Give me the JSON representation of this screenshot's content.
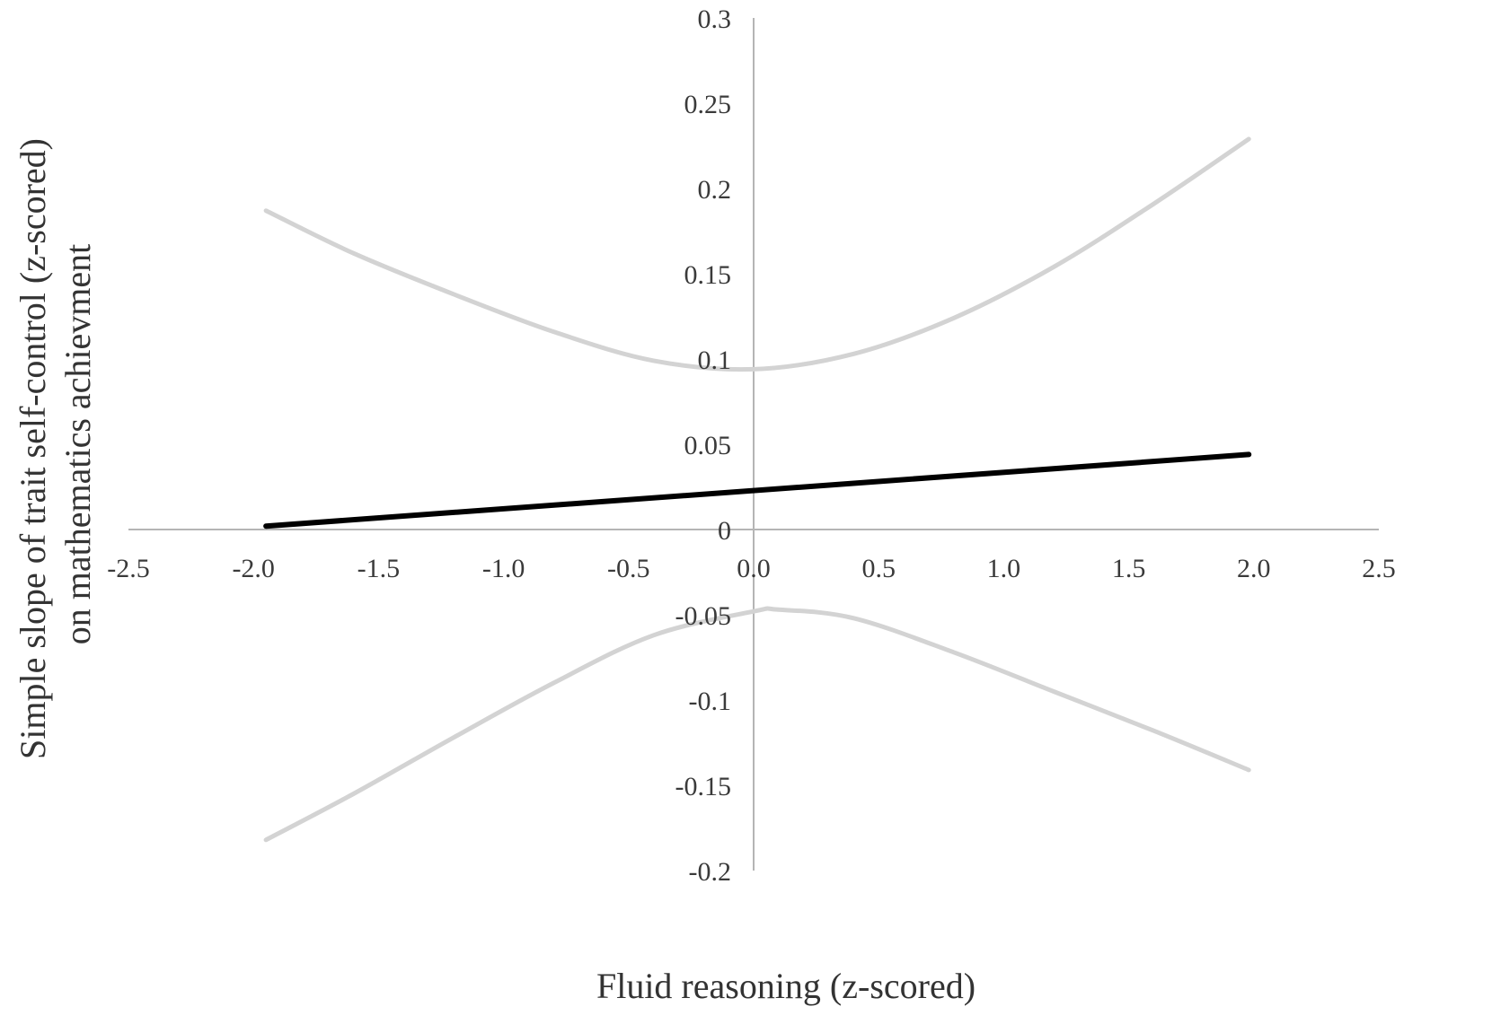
{
  "chart_data": {
    "type": "line",
    "title": "",
    "xlabel": "Fluid reasoning (z-scored)",
    "ylabel_lines": [
      "Simple slope of trait self-control (z-scored)",
      "on mathematics achievment"
    ],
    "xlim": [
      -2.5,
      2.5
    ],
    "ylim": [
      -0.2,
      0.3
    ],
    "x_ticks": [
      "-2.5",
      "-2.0",
      "-1.5",
      "-1.0",
      "-0.5",
      "0.0",
      "0.5",
      "1.0",
      "1.5",
      "2.0",
      "2.5"
    ],
    "y_ticks": [
      "-0.2",
      "-0.15",
      "-0.1",
      "-0.05",
      "0",
      "0.05",
      "0.1",
      "0.15",
      "0.2",
      "0.25",
      "0.3"
    ],
    "grid": false,
    "series": [
      {
        "role": "upper",
        "color": "#d3d3d3",
        "x": [
          -1.95,
          -1.6,
          -1.2,
          -0.8,
          -0.4,
          0.0,
          0.4,
          0.8,
          1.2,
          1.6,
          1.98
        ],
        "y": [
          0.187,
          0.162,
          0.138,
          0.116,
          0.099,
          0.094,
          0.103,
          0.124,
          0.154,
          0.191,
          0.229
        ]
      },
      {
        "role": "estimate",
        "color": "#000000",
        "x": [
          -1.95,
          1.98
        ],
        "y": [
          0.002,
          0.044
        ]
      },
      {
        "role": "lower",
        "color": "#d3d3d3",
        "x": [
          -1.95,
          -1.6,
          -1.2,
          -0.8,
          -0.4,
          0.0,
          0.1,
          0.4,
          0.8,
          1.2,
          1.6,
          1.98
        ],
        "y": [
          -0.182,
          -0.155,
          -0.122,
          -0.09,
          -0.062,
          -0.048,
          -0.047,
          -0.052,
          -0.072,
          -0.095,
          -0.118,
          -0.141
        ]
      }
    ]
  }
}
